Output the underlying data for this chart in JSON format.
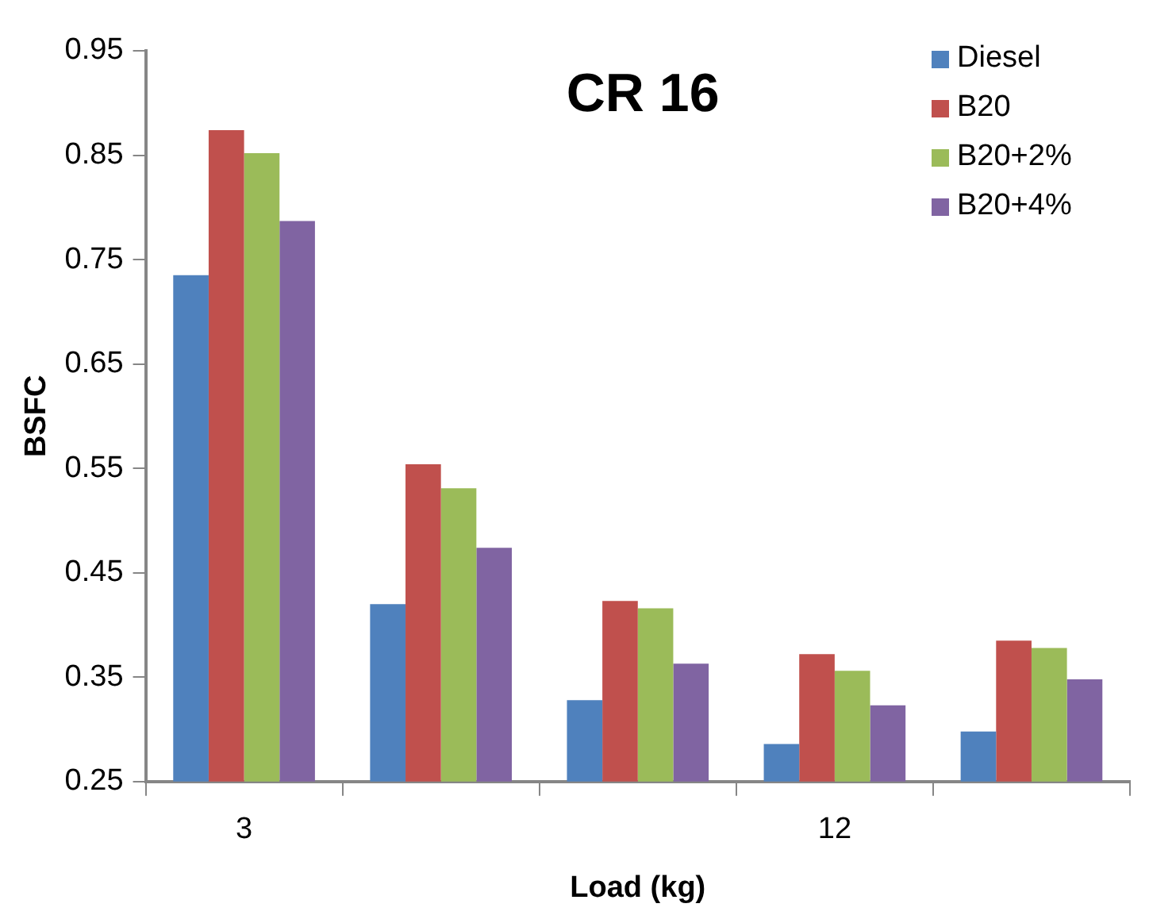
{
  "chart_data": {
    "type": "bar",
    "title": "CR 16",
    "xlabel": "Load (kg)",
    "ylabel": "BSFC",
    "categories": [
      "3",
      null,
      null,
      "12",
      null
    ],
    "series": [
      {
        "name": "Diesel",
        "color": "#4f81bd",
        "values": [
          0.735,
          0.42,
          0.328,
          0.286,
          0.298
        ]
      },
      {
        "name": "B20",
        "color": "#c0504d",
        "values": [
          0.874,
          0.554,
          0.423,
          0.372,
          0.385
        ]
      },
      {
        "name": "B20+2%",
        "color": "#9bbb59",
        "values": [
          0.852,
          0.531,
          0.416,
          0.356,
          0.378
        ]
      },
      {
        "name": "B20+4%",
        "color": "#8064a2",
        "values": [
          0.787,
          0.474,
          0.363,
          0.323,
          0.348
        ]
      }
    ],
    "ylim": [
      0.25,
      0.95
    ],
    "yticks": [
      0.25,
      0.35,
      0.45,
      0.55,
      0.65,
      0.75,
      0.85,
      0.95
    ],
    "grid": false,
    "legend": "top right"
  }
}
